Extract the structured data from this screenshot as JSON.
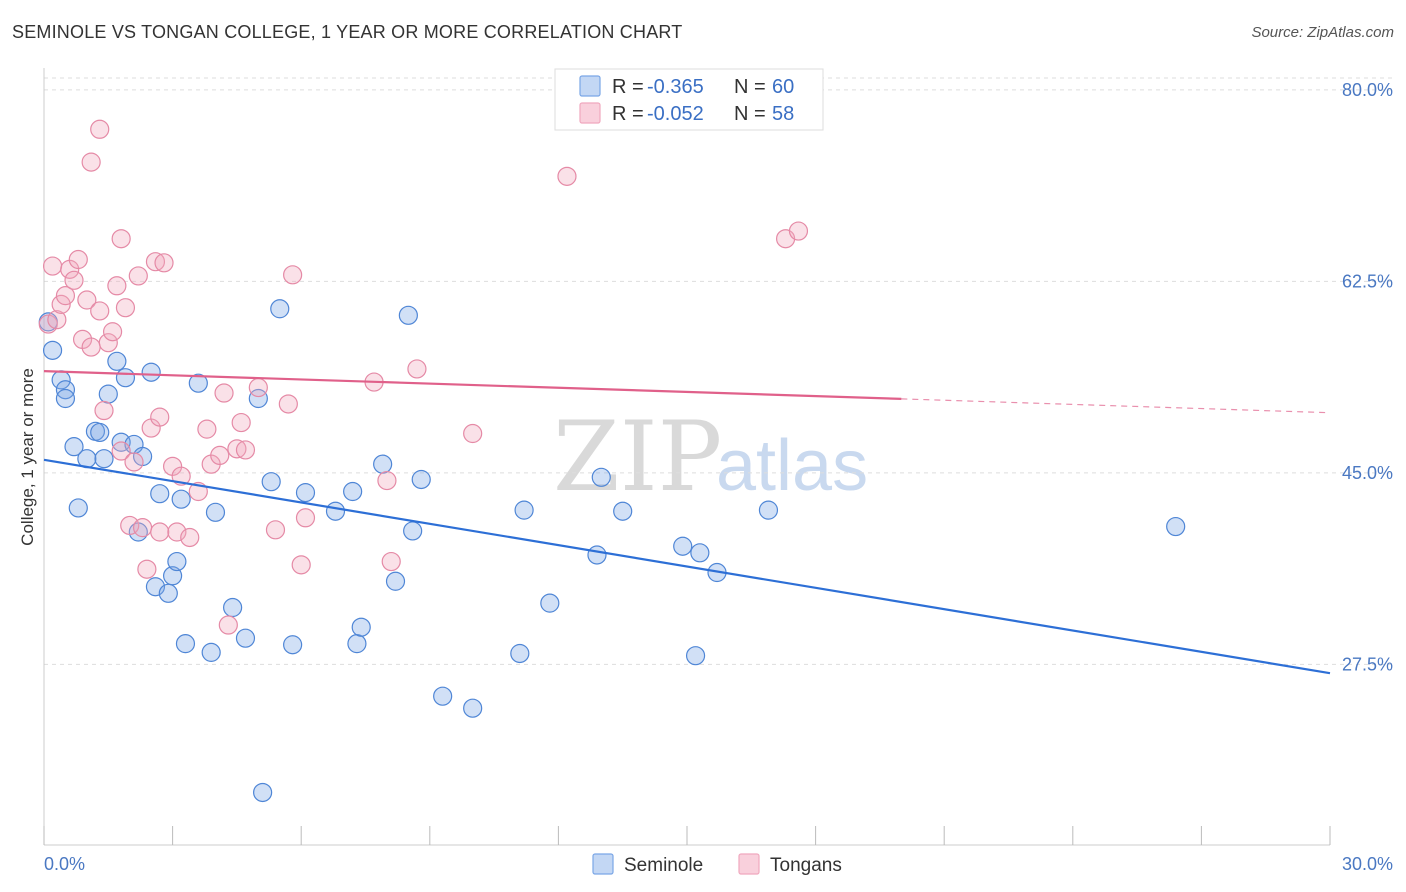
{
  "header": {
    "title": "SEMINOLE VS TONGAN COLLEGE, 1 YEAR OR MORE CORRELATION CHART",
    "source": "Source: ZipAtlas.com"
  },
  "watermark": {
    "zip": "ZIP",
    "atlas": "atlas"
  },
  "legend": {
    "r_label": "R =",
    "n_label": "N =",
    "rows": [
      {
        "name": "Seminole",
        "r": "-0.365",
        "n": "60",
        "color": "#7aa6e6"
      },
      {
        "name": "Tongans",
        "r": "-0.052",
        "n": "58",
        "color": "#f0a8be"
      }
    ]
  },
  "chart_data": {
    "type": "scatter",
    "title": "SEMINOLE VS TONGAN COLLEGE, 1 YEAR OR MORE CORRELATION CHART",
    "xlabel": "",
    "ylabel": "College, 1 year or more",
    "xlim": [
      0,
      30
    ],
    "ylim": [
      11,
      82
    ],
    "x_tick_labels": {
      "min": "0.0%",
      "max": "30.0%"
    },
    "y_ticks": [
      {
        "value": 80,
        "label": "80.0%"
      },
      {
        "value": 62.5,
        "label": "62.5%"
      },
      {
        "value": 45,
        "label": "45.0%"
      },
      {
        "value": 27.5,
        "label": "27.5%"
      }
    ],
    "grid": true,
    "legend_position": "top-center",
    "series": [
      {
        "name": "Seminole",
        "color": "#7aa6e6",
        "stroke": "#4f86d6",
        "trend": {
          "x0": 0,
          "y0": 46.2,
          "x1": 30,
          "y1": 26.7,
          "solid_until": 30,
          "color": "#2d6fd6"
        },
        "points": [
          [
            0.1,
            58.8
          ],
          [
            0.2,
            56.2
          ],
          [
            0.4,
            53.5
          ],
          [
            0.5,
            52.6
          ],
          [
            0.5,
            51.8
          ],
          [
            0.7,
            47.4
          ],
          [
            0.8,
            41.8
          ],
          [
            1.0,
            46.3
          ],
          [
            1.2,
            48.8
          ],
          [
            1.3,
            48.7
          ],
          [
            1.4,
            46.3
          ],
          [
            1.5,
            52.2
          ],
          [
            1.7,
            55.2
          ],
          [
            1.8,
            47.8
          ],
          [
            1.9,
            53.7
          ],
          [
            2.1,
            47.6
          ],
          [
            2.2,
            39.6
          ],
          [
            2.3,
            46.5
          ],
          [
            2.5,
            54.2
          ],
          [
            2.6,
            34.6
          ],
          [
            2.7,
            43.1
          ],
          [
            2.9,
            34.0
          ],
          [
            3.0,
            35.6
          ],
          [
            3.1,
            36.9
          ],
          [
            3.2,
            42.6
          ],
          [
            3.3,
            29.4
          ],
          [
            3.6,
            53.2
          ],
          [
            3.9,
            28.6
          ],
          [
            4.0,
            41.4
          ],
          [
            4.4,
            32.7
          ],
          [
            4.7,
            29.9
          ],
          [
            5.0,
            51.8
          ],
          [
            5.1,
            15.8
          ],
          [
            5.3,
            44.2
          ],
          [
            5.5,
            60.0
          ],
          [
            5.8,
            29.3
          ],
          [
            6.1,
            43.2
          ],
          [
            6.8,
            41.5
          ],
          [
            7.2,
            43.3
          ],
          [
            7.3,
            29.4
          ],
          [
            7.4,
            30.9
          ],
          [
            7.9,
            45.8
          ],
          [
            8.2,
            35.1
          ],
          [
            8.5,
            59.4
          ],
          [
            8.6,
            39.7
          ],
          [
            8.8,
            44.4
          ],
          [
            9.3,
            24.6
          ],
          [
            10.0,
            23.5
          ],
          [
            11.1,
            28.5
          ],
          [
            11.2,
            41.6
          ],
          [
            11.8,
            33.1
          ],
          [
            12.9,
            37.5
          ],
          [
            13.0,
            44.6
          ],
          [
            13.5,
            41.5
          ],
          [
            14.9,
            38.3
          ],
          [
            15.2,
            28.3
          ],
          [
            15.3,
            37.7
          ],
          [
            15.7,
            35.9
          ],
          [
            16.9,
            41.6
          ],
          [
            26.4,
            40.1
          ]
        ]
      },
      {
        "name": "Tongans",
        "color": "#f0a8be",
        "stroke": "#e58aa6",
        "trend": {
          "x0": 0,
          "y0": 54.3,
          "x1": 30,
          "y1": 50.5,
          "solid_until": 20,
          "color": "#e0608a"
        },
        "points": [
          [
            0.1,
            58.6
          ],
          [
            0.2,
            63.9
          ],
          [
            0.3,
            59.0
          ],
          [
            0.4,
            60.4
          ],
          [
            0.5,
            61.2
          ],
          [
            0.6,
            63.6
          ],
          [
            0.7,
            62.6
          ],
          [
            0.8,
            64.5
          ],
          [
            0.9,
            57.2
          ],
          [
            1.0,
            60.8
          ],
          [
            1.1,
            56.5
          ],
          [
            1.1,
            73.4
          ],
          [
            1.3,
            59.8
          ],
          [
            1.3,
            76.4
          ],
          [
            1.4,
            50.7
          ],
          [
            1.5,
            56.9
          ],
          [
            1.6,
            57.9
          ],
          [
            1.7,
            62.1
          ],
          [
            1.8,
            47.0
          ],
          [
            1.8,
            66.4
          ],
          [
            1.9,
            60.1
          ],
          [
            2.0,
            40.2
          ],
          [
            2.1,
            46.0
          ],
          [
            2.2,
            63.0
          ],
          [
            2.3,
            40.0
          ],
          [
            2.4,
            36.2
          ],
          [
            2.5,
            49.1
          ],
          [
            2.6,
            64.3
          ],
          [
            2.7,
            50.1
          ],
          [
            2.7,
            39.6
          ],
          [
            2.8,
            64.2
          ],
          [
            3.0,
            45.6
          ],
          [
            3.1,
            39.6
          ],
          [
            3.2,
            44.7
          ],
          [
            3.4,
            39.1
          ],
          [
            3.6,
            43.3
          ],
          [
            3.8,
            49.0
          ],
          [
            3.9,
            45.8
          ],
          [
            4.1,
            46.6
          ],
          [
            4.2,
            52.3
          ],
          [
            4.3,
            31.1
          ],
          [
            4.5,
            47.2
          ],
          [
            4.6,
            49.6
          ],
          [
            4.7,
            47.1
          ],
          [
            5.0,
            52.8
          ],
          [
            5.4,
            39.8
          ],
          [
            5.7,
            51.3
          ],
          [
            5.8,
            63.1
          ],
          [
            6.0,
            36.6
          ],
          [
            6.1,
            40.9
          ],
          [
            7.7,
            53.3
          ],
          [
            8.0,
            44.3
          ],
          [
            8.1,
            36.9
          ],
          [
            8.7,
            54.5
          ],
          [
            10.0,
            48.6
          ],
          [
            12.2,
            72.1
          ],
          [
            17.3,
            66.4
          ],
          [
            17.6,
            67.1
          ]
        ]
      }
    ]
  },
  "bottom_legend": {
    "items": [
      {
        "label": "Seminole",
        "color": "#7aa6e6"
      },
      {
        "label": "Tongans",
        "color": "#f0a8be"
      }
    ]
  }
}
